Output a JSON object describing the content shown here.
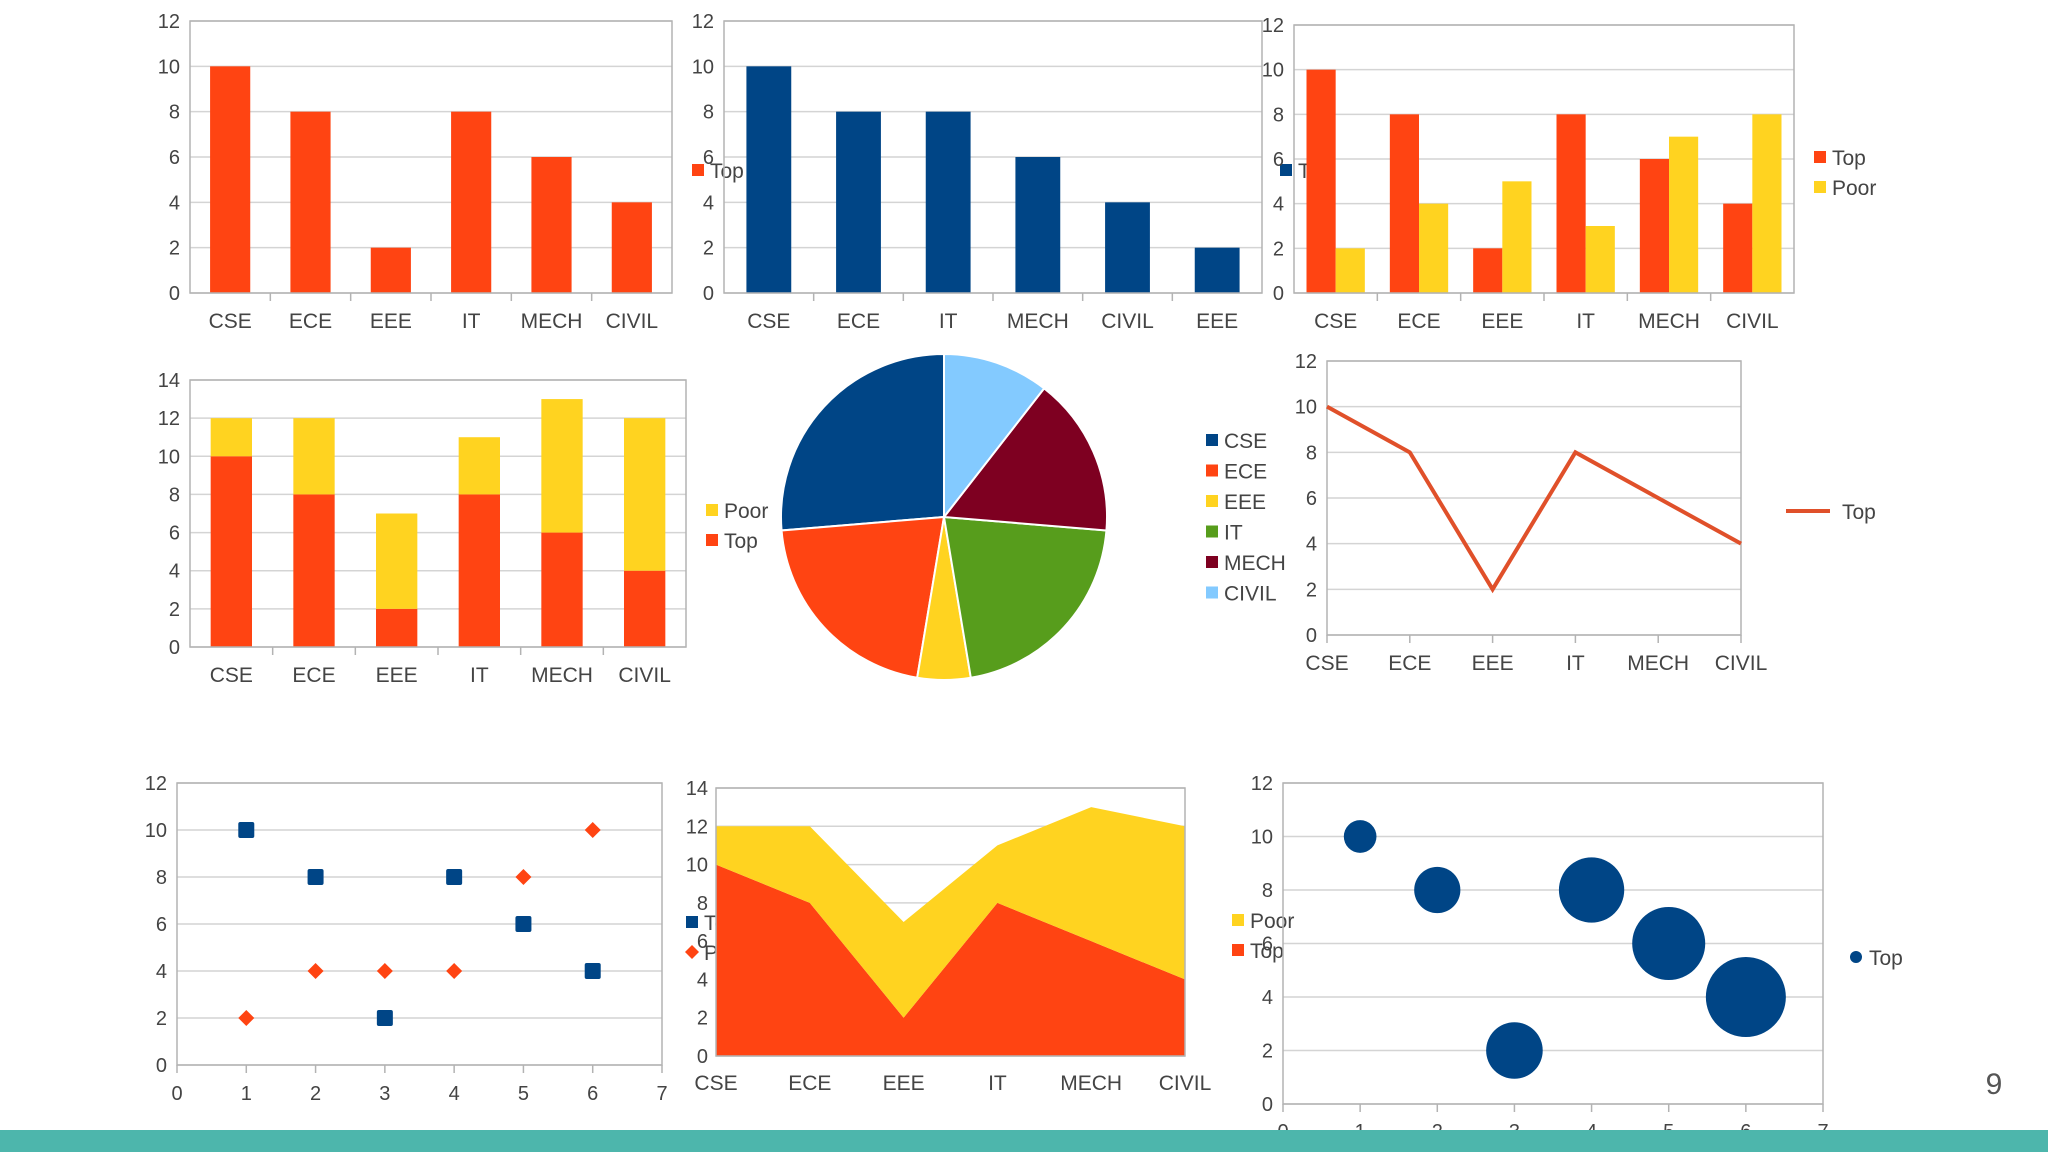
{
  "slide": {
    "page_number": "9"
  },
  "colors": {
    "orange": "#ff4412",
    "yellow": "#ffd320",
    "navy": "#004586",
    "green": "#579d1c",
    "maroon": "#7e0021",
    "lightblue": "#83caff",
    "footer": "#4db6ac",
    "grid": "#d4d4d4",
    "line": "#e0502a"
  },
  "chart_data": [
    {
      "id": "bar1",
      "type": "bar",
      "categories": [
        "CSE",
        "ECE",
        "EEE",
        "IT",
        "MECH",
        "CIVIL"
      ],
      "series": [
        {
          "name": "Top",
          "values": [
            10,
            8,
            2,
            8,
            6,
            4
          ],
          "color": "orange"
        }
      ],
      "ylim": [
        0,
        12
      ],
      "ystep": 2,
      "grid": true,
      "legend": "right"
    },
    {
      "id": "bar2",
      "type": "bar",
      "categories": [
        "CSE",
        "ECE",
        "IT",
        "MECH",
        "CIVIL",
        "EEE"
      ],
      "series": [
        {
          "name": "Top",
          "values": [
            10,
            8,
            8,
            6,
            4,
            2
          ],
          "color": "navy"
        }
      ],
      "ylim": [
        0,
        12
      ],
      "ystep": 2,
      "grid": true,
      "legend": "right"
    },
    {
      "id": "bar3",
      "type": "bar",
      "categories": [
        "CSE",
        "ECE",
        "EEE",
        "IT",
        "MECH",
        "CIVIL"
      ],
      "series": [
        {
          "name": "Top",
          "values": [
            10,
            8,
            2,
            8,
            6,
            4
          ],
          "color": "orange"
        },
        {
          "name": "Poor",
          "values": [
            2,
            4,
            5,
            3,
            7,
            8
          ],
          "color": "yellow"
        }
      ],
      "ylim": [
        0,
        12
      ],
      "ystep": 2,
      "grid": true,
      "legend": "right"
    },
    {
      "id": "stacked",
      "type": "bar",
      "stacked": true,
      "categories": [
        "CSE",
        "ECE",
        "EEE",
        "IT",
        "MECH",
        "CIVIL"
      ],
      "series": [
        {
          "name": "Top",
          "values": [
            10,
            8,
            2,
            8,
            6,
            4
          ],
          "color": "orange"
        },
        {
          "name": "Poor",
          "values": [
            2,
            4,
            5,
            3,
            7,
            8
          ],
          "color": "yellow"
        }
      ],
      "ylim": [
        0,
        14
      ],
      "ystep": 2,
      "grid": true,
      "legend": "right"
    },
    {
      "id": "pie",
      "type": "pie",
      "categories": [
        "CSE",
        "ECE",
        "EEE",
        "IT",
        "MECH",
        "CIVIL"
      ],
      "values": [
        10,
        8,
        2,
        8,
        6,
        4
      ],
      "colors": [
        "navy",
        "orange",
        "yellow",
        "green",
        "maroon",
        "lightblue"
      ],
      "legend": "right"
    },
    {
      "id": "line",
      "type": "line",
      "categories": [
        "CSE",
        "ECE",
        "EEE",
        "IT",
        "MECH",
        "CIVIL"
      ],
      "series": [
        {
          "name": "Top",
          "values": [
            10,
            8,
            2,
            8,
            6,
            4
          ],
          "color": "line"
        }
      ],
      "ylim": [
        0,
        12
      ],
      "ystep": 2,
      "grid": true,
      "legend": "right"
    },
    {
      "id": "scatter",
      "type": "scatter",
      "series": [
        {
          "name": "Top",
          "color": "navy",
          "marker": "square",
          "points": [
            [
              1,
              10
            ],
            [
              2,
              8
            ],
            [
              3,
              2
            ],
            [
              4,
              8
            ],
            [
              5,
              6
            ],
            [
              6,
              4
            ]
          ]
        },
        {
          "name": "Poor",
          "color": "orange",
          "marker": "diamond",
          "points": [
            [
              1,
              2
            ],
            [
              2,
              4
            ],
            [
              3,
              4
            ],
            [
              4,
              4
            ],
            [
              5,
              8
            ],
            [
              6,
              10
            ]
          ]
        }
      ],
      "xlim": [
        0,
        7
      ],
      "ylim": [
        0,
        12
      ],
      "ystep": 2,
      "grid": true,
      "legend": "right"
    },
    {
      "id": "area",
      "type": "area",
      "stacked": true,
      "categories": [
        "CSE",
        "ECE",
        "EEE",
        "IT",
        "MECH",
        "CIVIL"
      ],
      "series": [
        {
          "name": "Top",
          "values": [
            10,
            8,
            2,
            8,
            6,
            4
          ],
          "color": "orange"
        },
        {
          "name": "Poor",
          "values": [
            2,
            4,
            5,
            3,
            7,
            8
          ],
          "color": "yellow"
        }
      ],
      "ylim": [
        0,
        14
      ],
      "ystep": 2,
      "grid": true,
      "legend": "right"
    },
    {
      "id": "bubble",
      "type": "bubble",
      "series": [
        {
          "name": "Top",
          "color": "navy",
          "points": [
            [
              1,
              10,
              1
            ],
            [
              2,
              8,
              2
            ],
            [
              3,
              2,
              3
            ],
            [
              4,
              8,
              4
            ],
            [
              5,
              6,
              5
            ],
            [
              6,
              4,
              6
            ]
          ]
        }
      ],
      "xlim": [
        0,
        7
      ],
      "ylim": [
        0,
        12
      ],
      "ystep": 2,
      "grid": true,
      "legend": "right"
    }
  ]
}
